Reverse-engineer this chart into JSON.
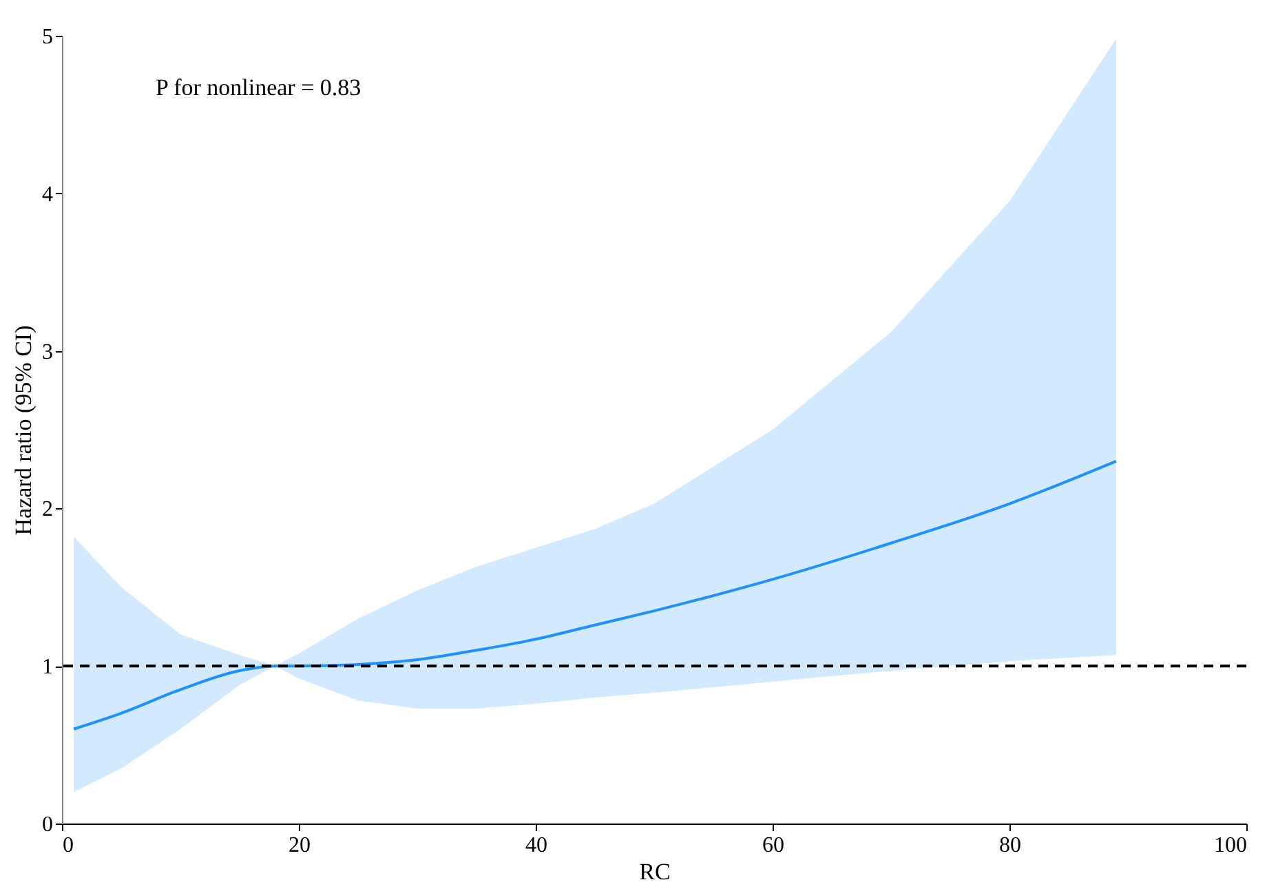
{
  "chart_data": {
    "type": "line",
    "xlabel": "RC",
    "ylabel": "Hazard ratio (95% CI)",
    "annotations": [
      "P for nonlinear = 0.83"
    ],
    "x": [
      1,
      5,
      10,
      15,
      18,
      20,
      25,
      30,
      35,
      40,
      45,
      50,
      60,
      70,
      80,
      89
    ],
    "series": [
      {
        "color": "#1e90ff",
        "values": [
          0.6,
          0.7,
          0.85,
          0.97,
          1.0,
          1.0,
          1.01,
          1.04,
          1.1,
          1.17,
          1.26,
          1.35,
          1.55,
          1.78,
          2.03,
          2.3
        ],
        "lower": [
          0.2,
          0.35,
          0.6,
          0.88,
          1.0,
          0.92,
          0.78,
          0.73,
          0.73,
          0.76,
          0.8,
          0.83,
          0.9,
          0.97,
          1.03,
          1.07
        ],
        "upper": [
          1.82,
          1.5,
          1.2,
          1.07,
          1.0,
          1.08,
          1.3,
          1.48,
          1.63,
          1.75,
          1.87,
          2.03,
          2.5,
          3.12,
          3.95,
          4.98
        ]
      }
    ],
    "xlim": [
      0,
      100
    ],
    "xticks": [
      0,
      20,
      40,
      60,
      80,
      100
    ],
    "ylim": [
      0,
      5
    ],
    "yticks": [
      0,
      1,
      2,
      3,
      4,
      5
    ],
    "grid": false,
    "ref_lines": [
      {
        "axis": "y",
        "value": 1,
        "color": "#000000",
        "line_style": "dashed"
      }
    ]
  }
}
